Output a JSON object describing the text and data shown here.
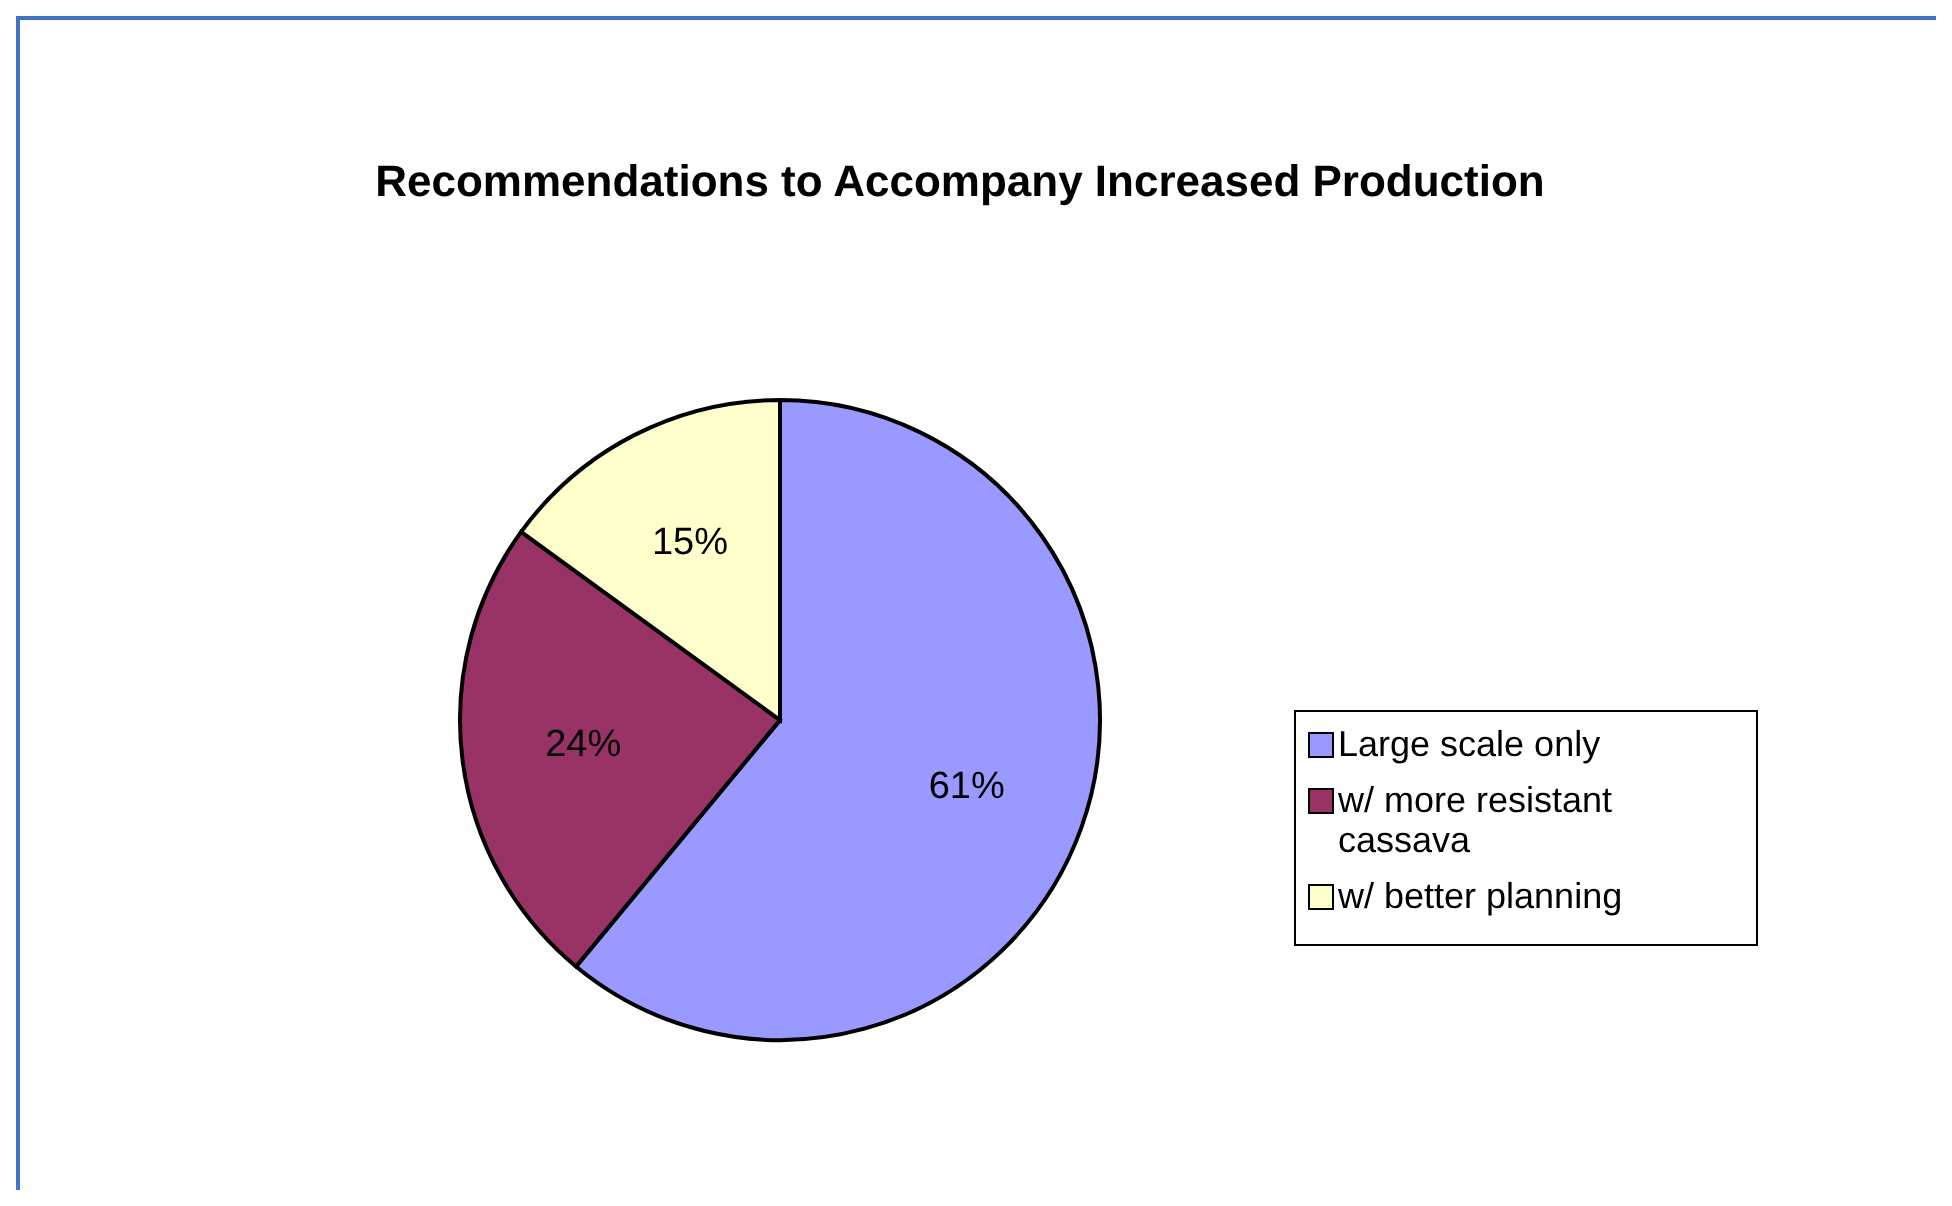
{
  "chart_data": {
    "type": "pie",
    "title": "Recommendations to Accompany Increased Production",
    "categories": [
      "Large scale only",
      "w/ more resistant cassava",
      "w/ better planning"
    ],
    "values": [
      61,
      24,
      15
    ],
    "colors": [
      "#9999ff",
      "#993366",
      "#ffffcc"
    ],
    "value_labels": [
      "61%",
      "24%",
      "15%"
    ],
    "legend": "right"
  }
}
